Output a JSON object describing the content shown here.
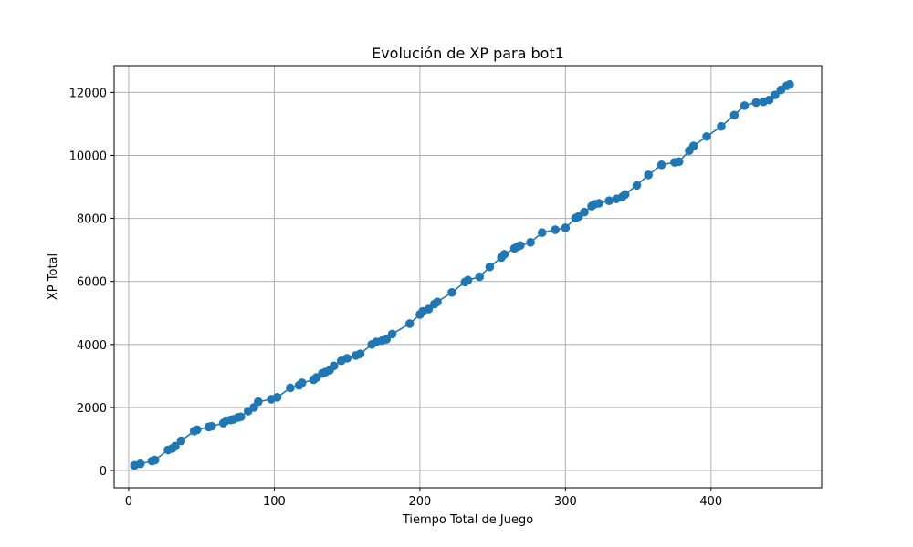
{
  "chart_data": {
    "type": "line",
    "title": "Evolución de XP para bot1",
    "xlabel": "Tiempo Total de Juego",
    "ylabel": "XP Total",
    "xlim": [
      -10,
      476
    ],
    "ylim": [
      -550,
      12850
    ],
    "xticks": [
      0,
      100,
      200,
      300,
      400
    ],
    "yticks": [
      0,
      2000,
      4000,
      6000,
      8000,
      10000,
      12000
    ],
    "grid": true,
    "color": "#1f77b4",
    "markers": true,
    "series": [
      {
        "x": [
          4,
          8,
          16,
          18,
          27,
          30,
          32,
          36,
          45,
          47,
          55,
          57,
          65,
          67,
          70,
          72,
          75,
          77,
          82,
          86,
          89,
          98,
          102,
          111,
          117,
          119,
          127,
          129,
          133,
          135,
          138,
          141,
          146,
          150,
          156,
          159,
          167,
          170,
          174,
          177,
          181,
          193,
          200,
          202,
          206,
          210,
          212,
          222,
          231,
          233,
          241,
          248,
          256,
          258,
          265,
          267,
          269,
          276,
          284,
          293,
          300,
          307,
          309,
          313,
          318,
          320,
          323,
          330,
          335,
          339,
          341,
          349,
          357,
          366,
          375,
          378,
          385,
          388,
          397,
          407,
          416,
          423,
          431,
          436,
          440,
          444,
          448,
          452,
          454
        ],
        "y": [
          160,
          210,
          300,
          330,
          650,
          700,
          770,
          940,
          1250,
          1290,
          1380,
          1400,
          1500,
          1580,
          1600,
          1620,
          1680,
          1700,
          1880,
          2000,
          2180,
          2260,
          2320,
          2620,
          2700,
          2780,
          2880,
          2950,
          3080,
          3120,
          3180,
          3320,
          3480,
          3560,
          3650,
          3700,
          4000,
          4080,
          4120,
          4160,
          4330,
          4660,
          4950,
          5050,
          5120,
          5280,
          5350,
          5650,
          5980,
          6040,
          6150,
          6460,
          6760,
          6860,
          7050,
          7100,
          7140,
          7240,
          7550,
          7640,
          7700,
          8010,
          8060,
          8200,
          8390,
          8450,
          8480,
          8560,
          8620,
          8680,
          8760,
          9050,
          9380,
          9700,
          9780,
          9800,
          10150,
          10300,
          10600,
          10920,
          11280,
          11580,
          11680,
          11700,
          11760,
          11920,
          12080,
          12210,
          12250
        ]
      }
    ]
  }
}
